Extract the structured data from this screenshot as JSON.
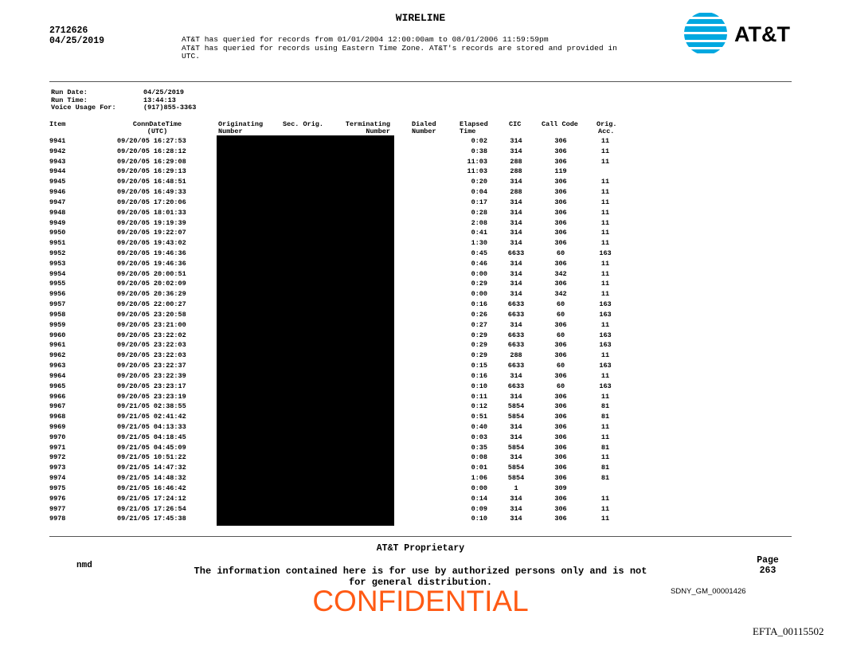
{
  "header": {
    "title": "WIRELINE",
    "case_number": "2712626",
    "date": "04/25/2019",
    "query_lines": [
      "AT&T has queried for records from 01/01/2004 12:00:00am to 08/01/2006 11:59:59pm",
      "AT&T has queried for records using Eastern Time Zone. AT&T's records are stored and provided in",
      "UTC."
    ],
    "logo_text": "AT&T",
    "logo_color": "#00a8e0"
  },
  "meta": {
    "run_date_label": "Run Date:",
    "run_date": "04/25/2019",
    "run_time_label": "Run Time:",
    "run_time": "13:44:13",
    "voice_usage_label": "Voice Usage For:",
    "voice_usage": "(917)855-3363"
  },
  "table": {
    "columns": {
      "item": "Item",
      "conn1": "ConnDateTime",
      "conn2": "(UTC)",
      "orig1": "Originating",
      "orig2": "Number",
      "sec": "Sec. Orig.",
      "term1": "Terminating",
      "term2": "Number",
      "dial1": "Dialed",
      "dial2": "Number",
      "elap1": "Elapsed",
      "elap2": "Time",
      "cic": "CIC",
      "callcode": "Call Code",
      "acc1": "Orig.",
      "acc2": "Acc."
    },
    "rows": [
      [
        "9941",
        "09/20/05 16:27:53",
        "0:02",
        "314",
        "306",
        "11"
      ],
      [
        "9942",
        "09/20/05 16:28:12",
        "0:38",
        "314",
        "306",
        "11"
      ],
      [
        "9943",
        "09/20/05 16:29:08",
        "11:03",
        "288",
        "306",
        "11"
      ],
      [
        "9944",
        "09/20/05 16:29:13",
        "11:03",
        "288",
        "119",
        ""
      ],
      [
        "9945",
        "09/20/05 16:48:51",
        "0:20",
        "314",
        "306",
        "11"
      ],
      [
        "9946",
        "09/20/05 16:49:33",
        "0:04",
        "288",
        "306",
        "11"
      ],
      [
        "9947",
        "09/20/05 17:20:06",
        "0:17",
        "314",
        "306",
        "11"
      ],
      [
        "9948",
        "09/20/05 18:01:33",
        "0:28",
        "314",
        "306",
        "11"
      ],
      [
        "9949",
        "09/20/05 19:19:39",
        "2:08",
        "314",
        "306",
        "11"
      ],
      [
        "9950",
        "09/20/05 19:22:07",
        "0:41",
        "314",
        "306",
        "11"
      ],
      [
        "9951",
        "09/20/05 19:43:02",
        "1:30",
        "314",
        "306",
        "11"
      ],
      [
        "9952",
        "09/20/05 19:46:36",
        "0:45",
        "6633",
        "60",
        "163"
      ],
      [
        "9953",
        "09/20/05 19:46:36",
        "0:46",
        "314",
        "306",
        "11"
      ],
      [
        "9954",
        "09/20/05 20:00:51",
        "0:00",
        "314",
        "342",
        "11"
      ],
      [
        "9955",
        "09/20/05 20:02:09",
        "0:29",
        "314",
        "306",
        "11"
      ],
      [
        "9956",
        "09/20/05 20:36:29",
        "0:00",
        "314",
        "342",
        "11"
      ],
      [
        "9957",
        "09/20/05 22:00:27",
        "0:16",
        "6633",
        "60",
        "163"
      ],
      [
        "9958",
        "09/20/05 23:20:58",
        "0:26",
        "6633",
        "60",
        "163"
      ],
      [
        "9959",
        "09/20/05 23:21:00",
        "0:27",
        "314",
        "306",
        "11"
      ],
      [
        "9960",
        "09/20/05 23:22:02",
        "0:29",
        "6633",
        "60",
        "163"
      ],
      [
        "9961",
        "09/20/05 23:22:03",
        "0:29",
        "6633",
        "306",
        "163"
      ],
      [
        "9962",
        "09/20/05 23:22:03",
        "0:29",
        "288",
        "306",
        "11"
      ],
      [
        "9963",
        "09/20/05 23:22:37",
        "0:15",
        "6633",
        "60",
        "163"
      ],
      [
        "9964",
        "09/20/05 23:22:39",
        "0:16",
        "314",
        "306",
        "11"
      ],
      [
        "9965",
        "09/20/05 23:23:17",
        "0:10",
        "6633",
        "60",
        "163"
      ],
      [
        "9966",
        "09/20/05 23:23:19",
        "0:11",
        "314",
        "306",
        "11"
      ],
      [
        "9967",
        "09/21/05 02:38:55",
        "0:12",
        "5854",
        "306",
        "81"
      ],
      [
        "9968",
        "09/21/05 02:41:42",
        "0:51",
        "5854",
        "306",
        "81"
      ],
      [
        "9969",
        "09/21/05 04:13:33",
        "0:40",
        "314",
        "306",
        "11"
      ],
      [
        "9970",
        "09/21/05 04:18:45",
        "0:03",
        "314",
        "306",
        "11"
      ],
      [
        "9971",
        "09/21/05 04:45:09",
        "0:35",
        "5854",
        "306",
        "81"
      ],
      [
        "9972",
        "09/21/05 10:51:22",
        "0:08",
        "314",
        "306",
        "11"
      ],
      [
        "9973",
        "09/21/05 14:47:32",
        "0:01",
        "5854",
        "306",
        "81"
      ],
      [
        "9974",
        "09/21/05 14:48:32",
        "1:06",
        "5854",
        "306",
        "81"
      ],
      [
        "9975",
        "09/21/05 16:46:42",
        "0:00",
        "1",
        "309",
        ""
      ],
      [
        "9976",
        "09/21/05 17:24:12",
        "0:14",
        "314",
        "306",
        "11"
      ],
      [
        "9977",
        "09/21/05 17:26:54",
        "0:09",
        "314",
        "306",
        "11"
      ],
      [
        "9978",
        "09/21/05 17:45:38",
        "0:10",
        "314",
        "306",
        "11"
      ]
    ]
  },
  "footer": {
    "proprietary": "AT&T Proprietary",
    "initials": "nmd",
    "notice_line1": "The information contained here is for use by authorized persons only and is not",
    "notice_line2": "for general distribution.",
    "page_label": "Page",
    "page_number": "263",
    "confidential": "CONFIDENTIAL",
    "confidential_color": "#ff5a14",
    "bates": "SDNY_GM_00001426",
    "efta": "EFTA_00115502"
  }
}
